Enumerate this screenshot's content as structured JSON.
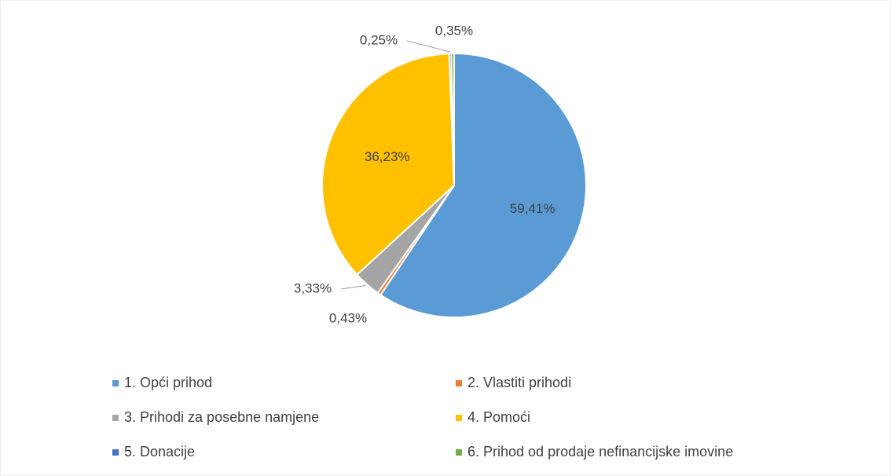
{
  "chart_data": {
    "type": "pie",
    "categories": [
      "1. Opći prihod",
      "2. Vlastiti prihodi",
      "3. Prihodi za posebne namjene",
      "4. Pomoći",
      "5. Donacije",
      "6. Prihod od prodaje nefinancijske imovine"
    ],
    "values": [
      59.41,
      0.43,
      3.33,
      36.23,
      0.25,
      0.35
    ],
    "value_labels": [
      "59,41%",
      "0,43%",
      "3,33%",
      "36,23%",
      "0,25%",
      "0,35%"
    ],
    "colors": [
      "#5b9bd5",
      "#ed7d31",
      "#a5a5a5",
      "#ffc000",
      "#4472c4",
      "#70ad47"
    ],
    "legend": "bottom"
  }
}
